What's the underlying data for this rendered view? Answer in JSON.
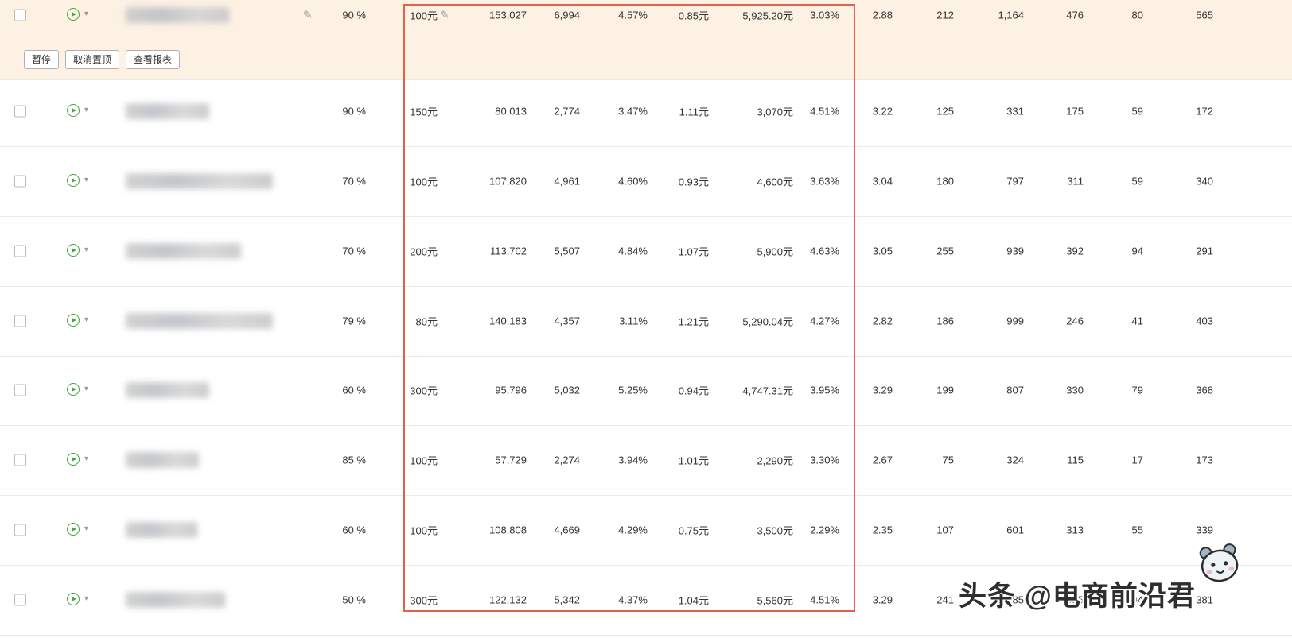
{
  "action_buttons": {
    "pause": "暂停",
    "unpin": "取消置顶",
    "view_report": "查看报表"
  },
  "highlight": {
    "pinned_row_background": "#fdf1e4",
    "box_color": "#e2604c"
  },
  "icons": {
    "play": "play-icon",
    "caret": "▾",
    "edit": "✎"
  },
  "watermark": {
    "text": "头条 @电商前沿君"
  },
  "rows": [
    {
      "percent": "90 %",
      "budget": "100元",
      "impressions": "153,027",
      "clicks": "6,994",
      "ctr": "4.57%",
      "cpc": "0.85元",
      "spend": "5,925.20元",
      "conv_rate": "3.03%",
      "col9": "2.88",
      "col10": "212",
      "col11": "1,164",
      "col12": "476",
      "col13": "80",
      "col14": "565",
      "pinned": true
    },
    {
      "percent": "90 %",
      "budget": "150元",
      "impressions": "80,013",
      "clicks": "2,774",
      "ctr": "3.47%",
      "cpc": "1.11元",
      "spend": "3,070元",
      "conv_rate": "4.51%",
      "col9": "3.22",
      "col10": "125",
      "col11": "331",
      "col12": "175",
      "col13": "59",
      "col14": "172"
    },
    {
      "percent": "70 %",
      "budget": "100元",
      "impressions": "107,820",
      "clicks": "4,961",
      "ctr": "4.60%",
      "cpc": "0.93元",
      "spend": "4,600元",
      "conv_rate": "3.63%",
      "col9": "3.04",
      "col10": "180",
      "col11": "797",
      "col12": "311",
      "col13": "59",
      "col14": "340"
    },
    {
      "percent": "70 %",
      "budget": "200元",
      "impressions": "113,702",
      "clicks": "5,507",
      "ctr": "4.84%",
      "cpc": "1.07元",
      "spend": "5,900元",
      "conv_rate": "4.63%",
      "col9": "3.05",
      "col10": "255",
      "col11": "939",
      "col12": "392",
      "col13": "94",
      "col14": "291"
    },
    {
      "percent": "79 %",
      "budget": "80元",
      "impressions": "140,183",
      "clicks": "4,357",
      "ctr": "3.11%",
      "cpc": "1.21元",
      "spend": "5,290.04元",
      "conv_rate": "4.27%",
      "col9": "2.82",
      "col10": "186",
      "col11": "999",
      "col12": "246",
      "col13": "41",
      "col14": "403"
    },
    {
      "percent": "60 %",
      "budget": "300元",
      "impressions": "95,796",
      "clicks": "5,032",
      "ctr": "5.25%",
      "cpc": "0.94元",
      "spend": "4,747.31元",
      "conv_rate": "3.95%",
      "col9": "3.29",
      "col10": "199",
      "col11": "807",
      "col12": "330",
      "col13": "79",
      "col14": "368"
    },
    {
      "percent": "85 %",
      "budget": "100元",
      "impressions": "57,729",
      "clicks": "2,274",
      "ctr": "3.94%",
      "cpc": "1.01元",
      "spend": "2,290元",
      "conv_rate": "3.30%",
      "col9": "2.67",
      "col10": "75",
      "col11": "324",
      "col12": "115",
      "col13": "17",
      "col14": "173"
    },
    {
      "percent": "60 %",
      "budget": "100元",
      "impressions": "108,808",
      "clicks": "4,669",
      "ctr": "4.29%",
      "cpc": "0.75元",
      "spend": "3,500元",
      "conv_rate": "2.29%",
      "col9": "2.35",
      "col10": "107",
      "col11": "601",
      "col12": "313",
      "col13": "55",
      "col14": "339"
    },
    {
      "percent": "50 %",
      "budget": "300元",
      "impressions": "122,132",
      "clicks": "5,342",
      "ctr": "4.37%",
      "cpc": "1.04元",
      "spend": "5,560元",
      "conv_rate": "4.51%",
      "col9": "3.29",
      "col10": "241",
      "col11": "985",
      "col12": "455",
      "col13": "104",
      "col14": "381"
    }
  ]
}
